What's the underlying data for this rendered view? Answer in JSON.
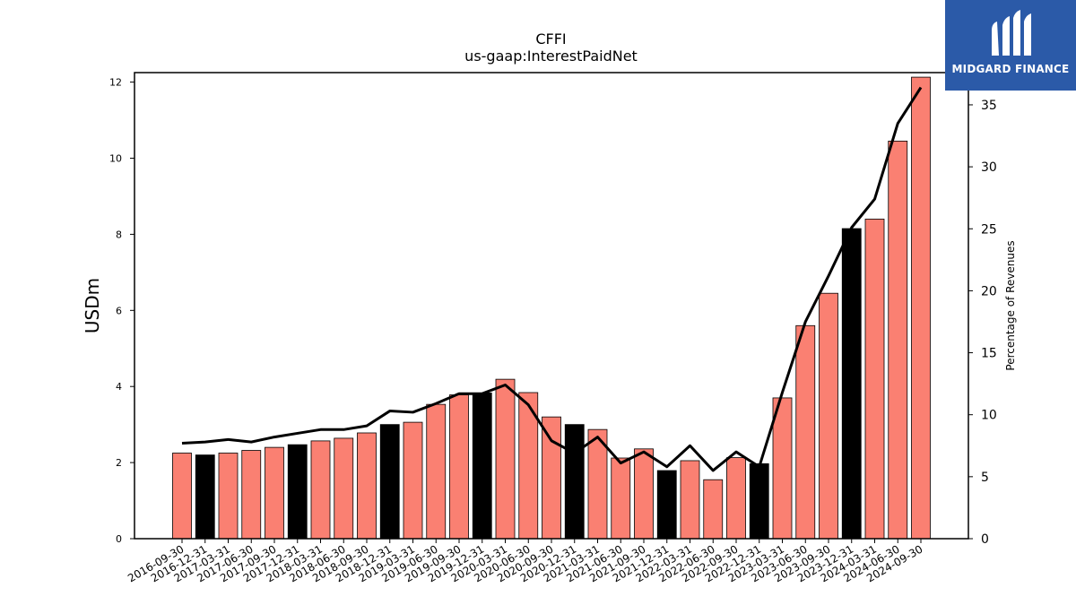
{
  "logo": {
    "text": "MIDGARD FINANCE",
    "icon": "midgard-m-logo-icon"
  },
  "chart_data": {
    "type": "bar",
    "title": "CFFI",
    "subtitle": "us-gaap:InterestPaidNet",
    "ylabel": "USDm",
    "y2label": "Percentage of Revenues",
    "ylim": [
      0,
      12.25
    ],
    "y2lim": [
      0,
      37.6
    ],
    "yticks": [
      0,
      2,
      4,
      6,
      8,
      10,
      12
    ],
    "y2ticks": [
      0,
      5,
      10,
      15,
      20,
      25,
      30,
      35
    ],
    "colors": {
      "bar": "#fa8072",
      "bar_q4": "#000000",
      "line": "#000000"
    },
    "categories": [
      "2016-09-30",
      "2016-12-31",
      "2017-03-31",
      "2017-06-30",
      "2017-09-30",
      "2017-12-31",
      "2018-03-31",
      "2018-06-30",
      "2018-09-30",
      "2018-12-31",
      "2019-03-31",
      "2019-06-30",
      "2019-09-30",
      "2019-12-31",
      "2020-03-31",
      "2020-06-30",
      "2020-09-30",
      "2020-12-31",
      "2021-03-31",
      "2021-06-30",
      "2021-09-30",
      "2021-12-31",
      "2022-03-31",
      "2022-06-30",
      "2022-09-30",
      "2022-12-31",
      "2023-03-31",
      "2023-06-30",
      "2023-09-30",
      "2023-12-31",
      "2024-03-31",
      "2024-06-30",
      "2024-09-30"
    ],
    "series": [
      {
        "type": "bar",
        "values": [
          2.25,
          2.2,
          2.25,
          2.32,
          2.4,
          2.47,
          2.57,
          2.64,
          2.78,
          3.0,
          3.06,
          3.53,
          3.78,
          3.83,
          4.19,
          3.84,
          3.2,
          3.0,
          2.87,
          2.12,
          2.36,
          1.79,
          2.05,
          1.55,
          2.13,
          1.97,
          3.7,
          5.6,
          6.45,
          8.15,
          8.4,
          10.45,
          12.13
        ]
      },
      {
        "type": "line",
        "axis": "right",
        "values": [
          7.7,
          7.8,
          8.0,
          7.8,
          8.2,
          8.5,
          8.8,
          8.8,
          9.1,
          10.3,
          10.2,
          10.9,
          11.7,
          11.7,
          12.4,
          10.8,
          7.9,
          6.9,
          8.2,
          6.1,
          7.0,
          5.8,
          7.5,
          5.5,
          7.0,
          5.8,
          11.8,
          17.5,
          21.2,
          25.1,
          27.4,
          33.5,
          36.4
        ]
      }
    ]
  }
}
